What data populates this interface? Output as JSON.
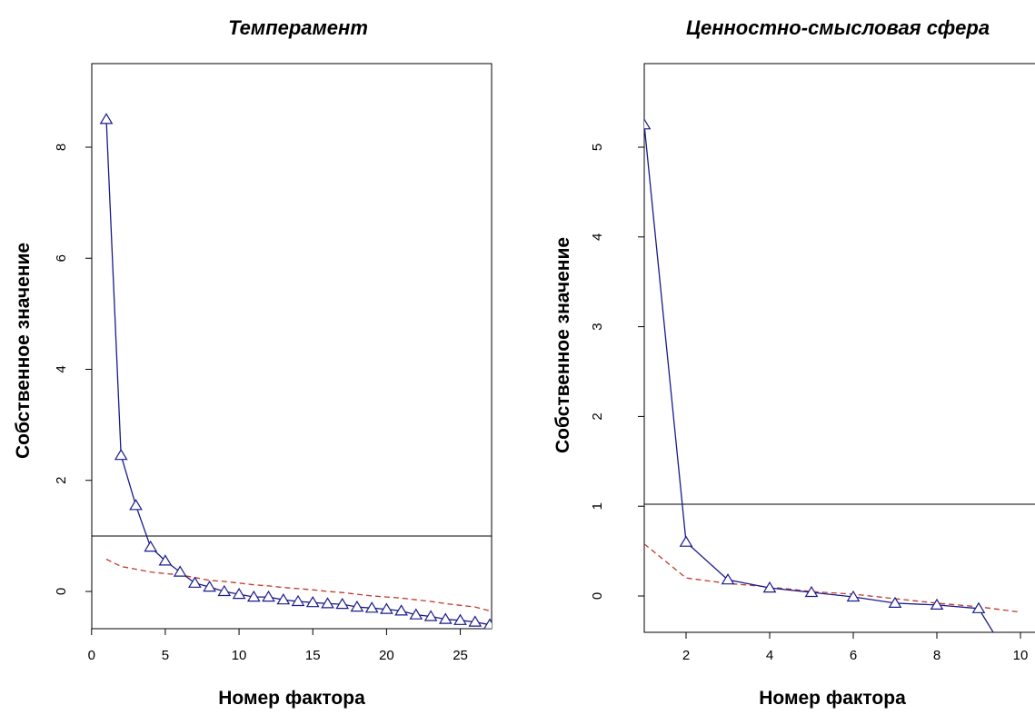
{
  "chart_data": [
    {
      "type": "line",
      "title": "Темперамент",
      "xlabel": "Номер фактора",
      "ylabel": "Собственное значение",
      "xlim": [
        0,
        27.6
      ],
      "ylim": [
        -0.75,
        9.4
      ],
      "x_ticks": [
        0,
        5,
        10,
        15,
        20,
        25
      ],
      "y_ticks": [
        0,
        2,
        4,
        6,
        8
      ],
      "reference_line": 1,
      "grid": false,
      "x": [
        1,
        2,
        3,
        4,
        5,
        6,
        7,
        8,
        9,
        10,
        11,
        12,
        13,
        14,
        15,
        16,
        17,
        18,
        19,
        20,
        21,
        22,
        23,
        24,
        25,
        26,
        27
      ],
      "series": [
        {
          "color": "#1a1a8c",
          "style": "solid-with-triangles",
          "values": [
            8.5,
            2.45,
            1.55,
            0.8,
            0.55,
            0.35,
            0.15,
            0.08,
            0.0,
            -0.05,
            -0.1,
            -0.1,
            -0.15,
            -0.18,
            -0.2,
            -0.22,
            -0.23,
            -0.28,
            -0.3,
            -0.32,
            -0.35,
            -0.42,
            -0.45,
            -0.5,
            -0.52,
            -0.55,
            -0.6
          ]
        },
        {
          "color": "#c0392b",
          "style": "dashed",
          "values": [
            0.58,
            0.45,
            0.4,
            0.35,
            0.32,
            0.3,
            0.25,
            0.2,
            0.18,
            0.15,
            0.12,
            0.1,
            0.07,
            0.05,
            0.03,
            0.0,
            -0.02,
            -0.05,
            -0.08,
            -0.1,
            -0.12,
            -0.15,
            -0.18,
            -0.22,
            -0.25,
            -0.28,
            -0.35
          ]
        }
      ]
    },
    {
      "type": "line",
      "title": "Ценностно-смысловая сфера",
      "xlabel": "Номер фактора",
      "ylabel": "Собственное значение",
      "xlim": [
        0.65,
        10.35
      ],
      "ylim": [
        -0.42,
        5.85
      ],
      "x_ticks": [
        2,
        4,
        6,
        8,
        10
      ],
      "y_ticks": [
        0,
        1,
        2,
        3,
        4,
        5
      ],
      "reference_line": 1,
      "grid": false,
      "x": [
        1,
        2,
        3,
        4,
        5,
        6,
        7,
        8,
        9,
        10
      ],
      "series": [
        {
          "color": "#1a1a8c",
          "style": "solid-with-triangles",
          "values": [
            5.25,
            0.6,
            0.18,
            0.09,
            0.04,
            -0.01,
            -0.08,
            -0.1,
            -0.14,
            -0.9
          ]
        },
        {
          "color": "#c0392b",
          "style": "dashed",
          "values": [
            0.58,
            0.2,
            0.14,
            0.1,
            0.05,
            0.02,
            -0.03,
            -0.08,
            -0.12,
            -0.18
          ]
        }
      ]
    }
  ]
}
